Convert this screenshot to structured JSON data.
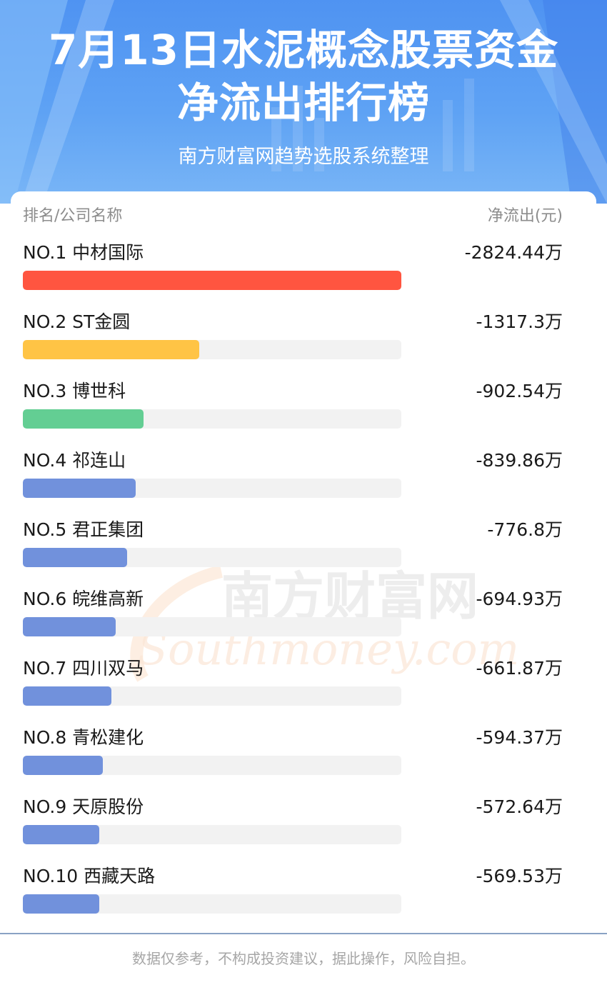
{
  "header": {
    "title_line1": "7月13日水泥概念股票资金",
    "title_line2": "净流出排行榜",
    "subtitle": "南方财富网趋势选股系统整理"
  },
  "table": {
    "col_left": "排名/公司名称",
    "col_right": "净流出(元)"
  },
  "chart_data": {
    "type": "bar",
    "orientation": "horizontal",
    "categories": [
      "NO.1 中材国际",
      "NO.2 ST金圆",
      "NO.3 博世科",
      "NO.4 祁连山",
      "NO.5 君正集团",
      "NO.6 皖维高新",
      "NO.7 四川双马",
      "NO.8 青松建化",
      "NO.9 天原股份",
      "NO.10 西藏天路"
    ],
    "values": [
      -2824.44,
      -1317.3,
      -902.54,
      -839.86,
      -776.8,
      -694.93,
      -661.87,
      -594.37,
      -572.64,
      -569.53
    ],
    "value_labels": [
      "-2824.44万",
      "-1317.3万",
      "-902.54万",
      "-839.86万",
      "-776.8万",
      "-694.93万",
      "-661.87万",
      "-594.37万",
      "-572.64万",
      "-569.53万"
    ],
    "colors": [
      "#ff5540",
      "#ffc445",
      "#63ce93",
      "#7191dc",
      "#7191dc",
      "#7191dc",
      "#7191dc",
      "#7191dc",
      "#7191dc",
      "#7191dc"
    ],
    "track_color": "#f2f2f2"
  },
  "watermark": {
    "cn": "南方财富网",
    "en": "Southmoney.com"
  },
  "footer": {
    "disclaimer": "数据仅参考，不构成投资建议，据此操作，风险自担。"
  }
}
